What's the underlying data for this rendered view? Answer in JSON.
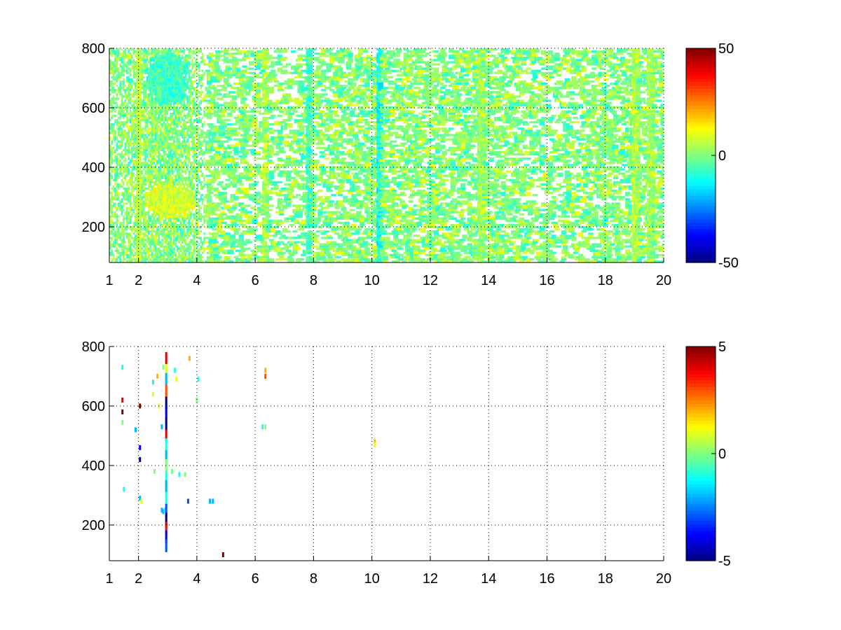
{
  "chart_data": [
    {
      "type": "heatmap",
      "title": "",
      "xlabel": "",
      "ylabel": "",
      "xlim": [
        1,
        20
      ],
      "ylim": [
        80,
        800
      ],
      "x_ticks": [
        "1",
        "2",
        "4",
        "6",
        "8",
        "10",
        "12",
        "14",
        "16",
        "18",
        "20"
      ],
      "x_tick_values": [
        1,
        2,
        4,
        6,
        8,
        10,
        12,
        14,
        16,
        18,
        20
      ],
      "y_ticks": [
        "200",
        "400",
        "600",
        "800"
      ],
      "y_tick_values": [
        200,
        400,
        600,
        800
      ],
      "grid": true,
      "colorbar": {
        "colormap": "jet",
        "range": [
          -50,
          50
        ],
        "ticks": [
          "-50",
          "0",
          "50"
        ],
        "tick_values": [
          -50,
          0,
          50
        ]
      },
      "pattern": "dense scattered small-amplitude values (mostly near 0, green/yellow/cyan) across the whole plane; densest for x 1-4, sparse vertical streaks at higher x; blank (NaN) gaps",
      "seed": 7,
      "density_profile": [
        [
          1,
          0.55
        ],
        [
          2,
          0.7
        ],
        [
          3,
          0.9
        ],
        [
          4,
          0.6
        ],
        [
          4.3,
          0.35
        ],
        [
          6,
          0.2
        ],
        [
          8,
          0.22
        ],
        [
          10,
          0.3
        ],
        [
          12,
          0.28
        ],
        [
          14,
          0.3
        ],
        [
          16,
          0.22
        ],
        [
          18,
          0.3
        ],
        [
          20,
          0.28
        ]
      ],
      "clusters": [
        {
          "x": 3.0,
          "y": 700,
          "rx": 0.8,
          "ry": 90,
          "mean": -6,
          "spread": 5
        },
        {
          "x": 3.1,
          "y": 290,
          "rx": 0.9,
          "ry": 60,
          "mean": 8,
          "spread": 5
        }
      ],
      "streaks": [
        {
          "x": 2.0,
          "mean": 6
        },
        {
          "x": 6.3,
          "mean": 5
        },
        {
          "x": 7.8,
          "mean": -6
        },
        {
          "x": 10.2,
          "mean": -10
        },
        {
          "x": 13.7,
          "mean": 3
        },
        {
          "x": 19.0,
          "mean": 5
        },
        {
          "x": 19.5,
          "mean": 4
        }
      ]
    },
    {
      "type": "heatmap",
      "title": "",
      "xlabel": "",
      "ylabel": "",
      "xlim": [
        1,
        20
      ],
      "ylim": [
        80,
        800
      ],
      "x_ticks": [
        "1",
        "2",
        "4",
        "6",
        "8",
        "10",
        "12",
        "14",
        "16",
        "18",
        "20"
      ],
      "x_tick_values": [
        1,
        2,
        4,
        6,
        8,
        10,
        12,
        14,
        16,
        18,
        20
      ],
      "y_ticks": [
        "200",
        "400",
        "600",
        "800"
      ],
      "y_tick_values": [
        200,
        400,
        600,
        800
      ],
      "grid": true,
      "colorbar": {
        "colormap": "jet",
        "range": [
          -5,
          5
        ],
        "ticks": [
          "-5",
          "0",
          "5"
        ],
        "tick_values": [
          -5,
          0,
          5
        ]
      },
      "pattern": "mostly blank (NaN); a few sparse speckles concentrated near x 1.5-4.5",
      "seed": 11,
      "spots": [
        {
          "x": 1.45,
          "y": 730,
          "v": -1
        },
        {
          "x": 1.45,
          "y": 620,
          "v": 4
        },
        {
          "x": 1.45,
          "y": 580,
          "v": 5
        },
        {
          "x": 1.45,
          "y": 545,
          "v": 0
        },
        {
          "x": 1.5,
          "y": 320,
          "v": -1
        },
        {
          "x": 1.9,
          "y": 520,
          "v": -2
        },
        {
          "x": 2.05,
          "y": 600,
          "v": 5
        },
        {
          "x": 2.05,
          "y": 460,
          "v": -4
        },
        {
          "x": 2.05,
          "y": 420,
          "v": -5
        },
        {
          "x": 2.05,
          "y": 290,
          "v": -2
        },
        {
          "x": 2.1,
          "y": 280,
          "v": 1
        },
        {
          "x": 2.5,
          "y": 680,
          "v": -1
        },
        {
          "x": 2.5,
          "y": 640,
          "v": 1
        },
        {
          "x": 2.55,
          "y": 380,
          "v": 0
        },
        {
          "x": 2.65,
          "y": 700,
          "v": 2
        },
        {
          "x": 2.7,
          "y": 600,
          "v": 1
        },
        {
          "x": 2.8,
          "y": 530,
          "v": -2
        },
        {
          "x": 2.8,
          "y": 250,
          "v": -2
        },
        {
          "x": 2.85,
          "y": 245,
          "v": -2
        },
        {
          "x": 2.9,
          "y": 250,
          "v": -1
        },
        {
          "x": 2.85,
          "y": 730,
          "v": 0
        },
        {
          "x": 3.25,
          "y": 720,
          "v": -1
        },
        {
          "x": 3.3,
          "y": 690,
          "v": 1
        },
        {
          "x": 3.15,
          "y": 380,
          "v": 0
        },
        {
          "x": 3.4,
          "y": 370,
          "v": -1
        },
        {
          "x": 3.6,
          "y": 370,
          "v": 0
        },
        {
          "x": 3.7,
          "y": 280,
          "v": -3
        },
        {
          "x": 3.75,
          "y": 760,
          "v": 2
        },
        {
          "x": 4.0,
          "y": 620,
          "v": 0
        },
        {
          "x": 4.05,
          "y": 690,
          "v": -1
        },
        {
          "x": 4.45,
          "y": 280,
          "v": -2
        },
        {
          "x": 4.55,
          "y": 280,
          "v": -2
        },
        {
          "x": 4.9,
          "y": 100,
          "v": 5
        },
        {
          "x": 6.25,
          "y": 530,
          "v": -1
        },
        {
          "x": 6.35,
          "y": 530,
          "v": 0
        },
        {
          "x": 6.35,
          "y": 720,
          "v": 2
        },
        {
          "x": 6.35,
          "y": 700,
          "v": 3
        },
        {
          "x": 10.1,
          "y": 480,
          "v": 2
        },
        {
          "x": 10.1,
          "y": 470,
          "v": 1
        }
      ],
      "column_x": 2.95,
      "column": [
        {
          "y": 760,
          "v": 4
        },
        {
          "y": 720,
          "v": 1
        },
        {
          "y": 690,
          "v": -2
        },
        {
          "y": 650,
          "v": 3
        },
        {
          "y": 610,
          "v": -5
        },
        {
          "y": 580,
          "v": -4
        },
        {
          "y": 540,
          "v": -5
        },
        {
          "y": 500,
          "v": 4
        },
        {
          "y": 470,
          "v": -1
        },
        {
          "y": 430,
          "v": -2
        },
        {
          "y": 400,
          "v": 0
        },
        {
          "y": 360,
          "v": -1
        },
        {
          "y": 330,
          "v": -2
        },
        {
          "y": 290,
          "v": -1
        },
        {
          "y": 250,
          "v": -3
        },
        {
          "y": 220,
          "v": -5
        },
        {
          "y": 190,
          "v": 4
        },
        {
          "y": 160,
          "v": -4
        },
        {
          "y": 130,
          "v": -3
        }
      ]
    }
  ]
}
